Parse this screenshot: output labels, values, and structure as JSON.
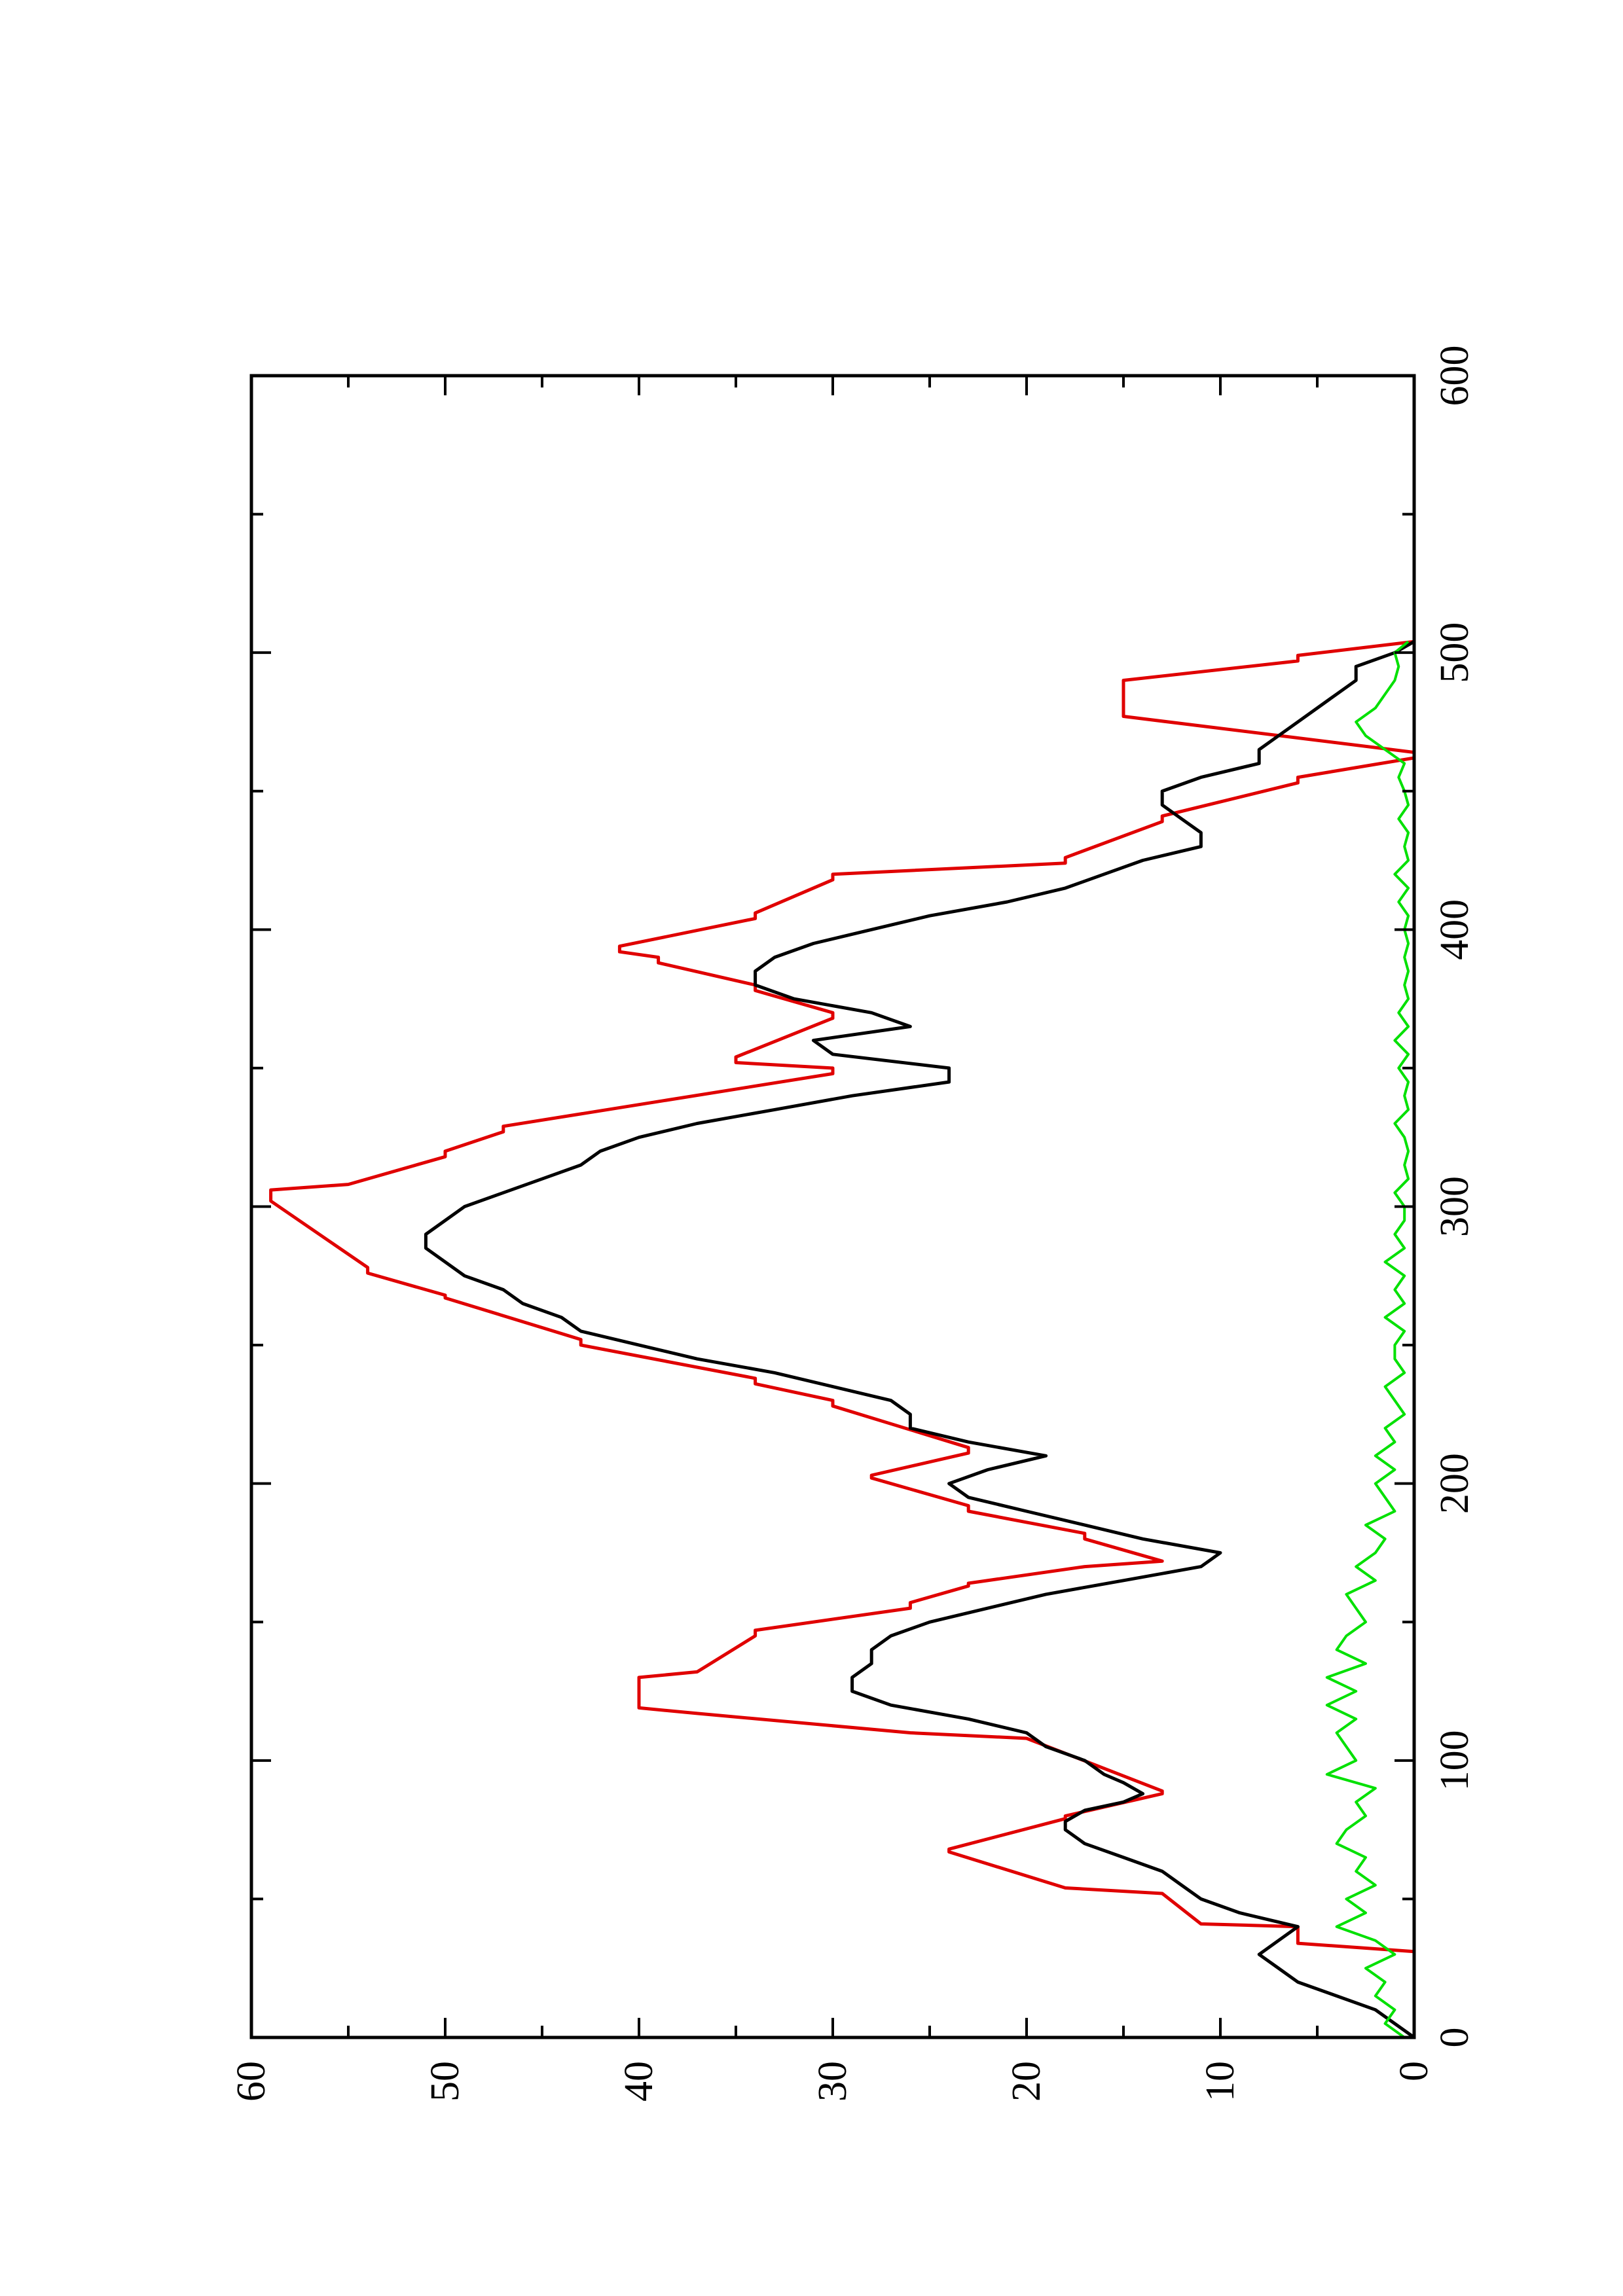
{
  "chart_data": {
    "type": "line",
    "orientation": "rotated 90° counter-clockwise (x axis runs vertically, y axis runs horizontally)",
    "title": "",
    "xlabel": "",
    "ylabel": "",
    "xlim": [
      0,
      600
    ],
    "ylim": [
      0,
      60
    ],
    "x_ticks": [
      "0",
      "100",
      "200",
      "300",
      "400",
      "500",
      "600"
    ],
    "y_ticks": [
      "0",
      "10",
      "20",
      "30",
      "40",
      "50",
      "60"
    ],
    "grid": false,
    "legend": "none",
    "series": [
      {
        "color": "#e00000",
        "style": "step",
        "x": [
          0,
          31,
          34,
          40,
          41,
          52,
          54,
          67,
          68,
          79,
          80,
          88,
          89,
          108,
          110,
          117,
          119,
          130,
          132,
          145,
          147,
          155,
          157,
          163,
          164,
          170,
          172,
          180,
          182,
          190,
          192,
          202,
          203,
          211,
          213,
          228,
          230,
          236,
          238,
          250,
          252,
          267,
          268,
          276,
          278,
          302,
          304,
          306,
          308,
          318,
          320,
          327,
          329,
          348,
          350,
          352,
          354,
          368,
          370,
          378,
          380,
          388,
          390,
          392,
          394,
          404,
          406,
          418,
          420,
          424,
          426,
          439,
          441,
          453,
          455,
          462,
          464,
          477,
          479,
          488,
          490,
          497,
          499,
          504
        ],
        "y": [
          0,
          0,
          6,
          6,
          11,
          13,
          18,
          24,
          24,
          18,
          18,
          13,
          13,
          20,
          26,
          37,
          40,
          40,
          37,
          34,
          34,
          26,
          26,
          23,
          23,
          17,
          13,
          17,
          17,
          23,
          23,
          28,
          28,
          23,
          23,
          30,
          30,
          34,
          34,
          43,
          43,
          50,
          50,
          54,
          54,
          59,
          59,
          59,
          55,
          50,
          50,
          47,
          47,
          30,
          30,
          35,
          35,
          30,
          30,
          34,
          34,
          39,
          39,
          41,
          41,
          34,
          34,
          30,
          30,
          18,
          18,
          13,
          13,
          6,
          6,
          0,
          0,
          15,
          15,
          15,
          15,
          6,
          6,
          0
        ]
      },
      {
        "color": "#000000",
        "style": "line",
        "x": [
          0,
          5,
          10,
          15,
          20,
          25,
          30,
          35,
          40,
          45,
          50,
          55,
          60,
          65,
          70,
          75,
          78,
          82,
          85,
          88,
          92,
          95,
          100,
          105,
          110,
          115,
          120,
          125,
          130,
          135,
          140,
          145,
          150,
          155,
          160,
          165,
          170,
          175,
          180,
          185,
          190,
          195,
          200,
          205,
          210,
          215,
          220,
          225,
          230,
          235,
          240,
          245,
          250,
          255,
          260,
          265,
          270,
          275,
          280,
          285,
          290,
          295,
          300,
          305,
          310,
          315,
          320,
          325,
          330,
          335,
          340,
          345,
          350,
          355,
          360,
          365,
          370,
          375,
          380,
          385,
          390,
          395,
          400,
          405,
          410,
          415,
          420,
          425,
          430,
          435,
          440,
          445,
          450,
          455,
          460,
          465,
          470,
          475,
          480,
          485,
          490,
          495,
          500,
          504
        ],
        "y": [
          0,
          1,
          2,
          4,
          6,
          7,
          8,
          7,
          6,
          9,
          11,
          12,
          13,
          15,
          17,
          18,
          18,
          17,
          15,
          14,
          15,
          16,
          17,
          19,
          20,
          23,
          27,
          29,
          29,
          28,
          28,
          27,
          25,
          22,
          19,
          15,
          11,
          10,
          14,
          17,
          20,
          23,
          24,
          22,
          19,
          23,
          26,
          26,
          27,
          30,
          33,
          37,
          40,
          43,
          44,
          46,
          47,
          49,
          50,
          51,
          51,
          50,
          49,
          47,
          45,
          43,
          42,
          40,
          37,
          33,
          29,
          24,
          24,
          30,
          31,
          26,
          28,
          32,
          34,
          34,
          33,
          31,
          28,
          25,
          21,
          18,
          16,
          14,
          11,
          11,
          12,
          13,
          13,
          11,
          8,
          8,
          7,
          6,
          5,
          4,
          3,
          3,
          1,
          0
        ]
      },
      {
        "color": "#00e000",
        "style": "line",
        "noisy_baseline": true,
        "x": [
          0,
          5,
          10,
          15,
          20,
          25,
          30,
          35,
          40,
          45,
          50,
          55,
          60,
          65,
          70,
          75,
          80,
          85,
          90,
          95,
          100,
          105,
          110,
          115,
          120,
          125,
          130,
          135,
          140,
          145,
          150,
          155,
          160,
          165,
          170,
          175,
          180,
          185,
          190,
          195,
          200,
          205,
          210,
          215,
          220,
          225,
          230,
          235,
          240,
          245,
          250,
          255,
          260,
          265,
          270,
          275,
          280,
          285,
          290,
          295,
          300,
          305,
          310,
          315,
          320,
          325,
          330,
          335,
          340,
          345,
          350,
          355,
          360,
          365,
          370,
          375,
          380,
          385,
          390,
          395,
          400,
          405,
          410,
          415,
          420,
          425,
          430,
          435,
          440,
          445,
          450,
          455,
          460,
          465,
          470,
          475,
          480,
          485,
          490,
          495,
          500,
          504
        ],
        "y": [
          0.5,
          1.5,
          1.0,
          2.0,
          1.5,
          2.5,
          1.0,
          2.0,
          4.0,
          2.5,
          3.5,
          2.0,
          3.0,
          2.5,
          4.0,
          3.5,
          2.5,
          3.0,
          2.0,
          4.5,
          3.0,
          3.5,
          4.0,
          3.0,
          4.5,
          3.0,
          4.5,
          2.5,
          4.0,
          3.5,
          2.5,
          3.0,
          3.5,
          2.0,
          3.0,
          2.0,
          1.5,
          2.5,
          1.0,
          1.5,
          2.0,
          1.0,
          2.0,
          1.0,
          1.5,
          0.5,
          1.0,
          1.5,
          0.5,
          1.0,
          1.0,
          0.5,
          1.5,
          0.5,
          1.0,
          0.5,
          1.5,
          0.5,
          1.0,
          0.5,
          0.5,
          1.0,
          0.3,
          0.5,
          0.3,
          0.5,
          1.0,
          0.3,
          0.5,
          0.3,
          0.8,
          0.3,
          1.0,
          0.3,
          0.8,
          0.3,
          0.5,
          0.3,
          0.5,
          0.3,
          0.5,
          0.3,
          0.8,
          0.3,
          1.0,
          0.3,
          0.5,
          0.3,
          0.8,
          0.3,
          0.5,
          0.8,
          0.5,
          1.5,
          2.5,
          3.0,
          2.0,
          1.5,
          1.0,
          0.8,
          1.0,
          0.3
        ]
      }
    ]
  }
}
